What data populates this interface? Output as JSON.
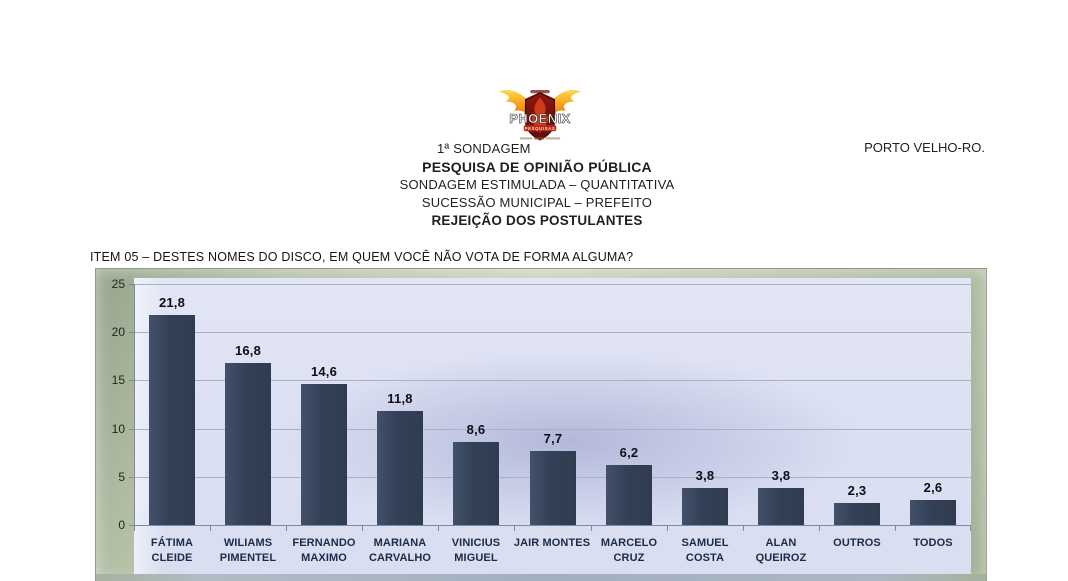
{
  "header": {
    "sondagem_label": "1ª SONDAGEM",
    "location": "PORTO VELHO-RO.",
    "title": "PESQUISA DE OPINIÃO PÚBLICA",
    "subtitle1": "SONDAGEM ESTIMULADA – QUANTITATIVA",
    "subtitle2": "SUCESSÃO MUNICIPAL – PREFEITO",
    "subtitle3": "REJEIÇÃO DOS POSTULANTES"
  },
  "logo": {
    "title": "PHOENIX",
    "subtitle": "PESQUISAS"
  },
  "question": "ITEM 05 – DESTES NOMES DO DISCO, EM QUEM VOCÊ NÃO VOTA DE FORMA ALGUMA?",
  "chart_data": {
    "type": "bar",
    "title": "",
    "xlabel": "",
    "ylabel": "",
    "categories": [
      "FÁTIMA CLEIDE",
      "WILIAMS PIMENTEL",
      "FERNANDO MAXIMO",
      "MARIANA CARVALHO",
      "VINICIUS MIGUEL",
      "JAIR MONTES",
      "MARCELO CRUZ",
      "SAMUEL COSTA",
      "ALAN QUEIROZ",
      "OUTROS",
      "TODOS"
    ],
    "category_lines": [
      [
        "FÁTIMA",
        "CLEIDE"
      ],
      [
        "WILIAMS",
        "PIMENTEL"
      ],
      [
        "FERNANDO",
        "MAXIMO"
      ],
      [
        "MARIANA",
        "CARVALHO"
      ],
      [
        "VINICIUS",
        "MIGUEL"
      ],
      [
        "JAIR MONTES"
      ],
      [
        "MARCELO",
        "CRUZ"
      ],
      [
        "SAMUEL",
        "COSTA"
      ],
      [
        "ALAN",
        "QUEIROZ"
      ],
      [
        "OUTROS"
      ],
      [
        "TODOS"
      ]
    ],
    "values": [
      21.8,
      16.8,
      14.6,
      11.8,
      8.6,
      7.7,
      6.2,
      3.8,
      3.8,
      2.3,
      2.6
    ],
    "value_labels": [
      "21,8",
      "16,8",
      "14,6",
      "11,8",
      "8,6",
      "7,7",
      "6,2",
      "3,8",
      "3,8",
      "2,3",
      "2,6"
    ],
    "y_ticks": [
      0,
      5,
      10,
      15,
      20,
      25
    ],
    "ylim": [
      0,
      25
    ],
    "grid": true,
    "legend": false,
    "colors": {
      "bar": "#334056",
      "gridline": "#a9b0c8",
      "plot_background": "#dadff2",
      "frame": "#b9c4ab",
      "category_text": "#1b2b4a",
      "value_text": "#0d0f15"
    }
  }
}
